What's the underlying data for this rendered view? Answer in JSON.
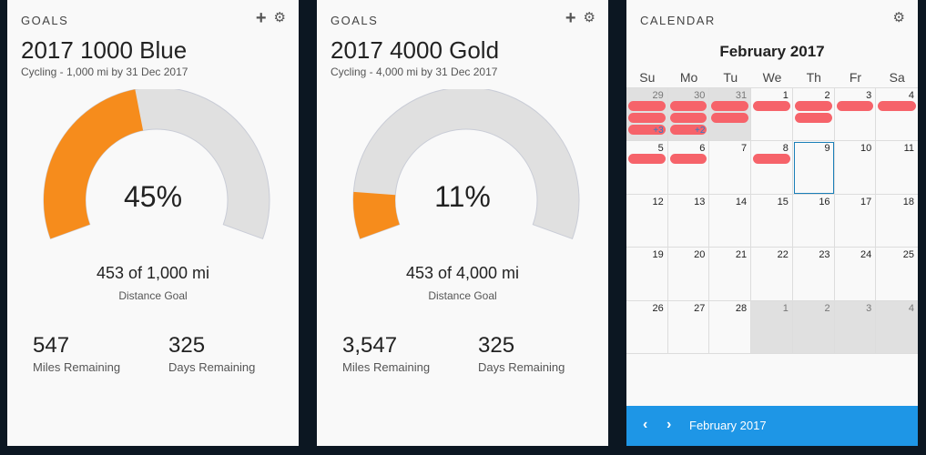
{
  "goals": [
    {
      "header": "GOALS",
      "title": "2017 1000 Blue",
      "subtitle": "Cycling - 1,000 mi by 31 Dec 2017",
      "progress_fraction": 0.45,
      "percent_text": "45%",
      "progress_text": "453 of 1,000 mi",
      "goal_type": "Distance Goal",
      "remaining_value": "547",
      "remaining_label": "Miles Remaining",
      "days_value": "325",
      "days_label": "Days Remaining"
    },
    {
      "header": "GOALS",
      "title": "2017 4000 Gold",
      "subtitle": "Cycling - 4,000 mi by 31 Dec 2017",
      "progress_fraction": 0.11,
      "percent_text": "11%",
      "progress_text": "453 of 4,000 mi",
      "goal_type": "Distance Goal",
      "remaining_value": "3,547",
      "remaining_label": "Miles Remaining",
      "days_value": "325",
      "days_label": "Days Remaining"
    }
  ],
  "icons": {
    "add": "plus-icon",
    "settings": "gear-icon",
    "prev": "chevron-left-icon",
    "next": "chevron-right-icon"
  },
  "colors": {
    "progress": "#f68c1c",
    "track": "#e0e0e0",
    "event": "#f6636a",
    "footer": "#1e96e6",
    "background": "#0c1722"
  },
  "calendar": {
    "header": "CALENDAR",
    "month_title": "February 2017",
    "weekdays": [
      "Su",
      "Mo",
      "Tu",
      "We",
      "Th",
      "Fr",
      "Sa"
    ],
    "days": [
      {
        "num": "29",
        "other": true,
        "events": 3,
        "more": "+3"
      },
      {
        "num": "30",
        "other": true,
        "events": 3,
        "more": "+2"
      },
      {
        "num": "31",
        "other": true,
        "events": 2
      },
      {
        "num": "1",
        "events": 1
      },
      {
        "num": "2",
        "events": 2
      },
      {
        "num": "3",
        "events": 1
      },
      {
        "num": "4",
        "events": 1
      },
      {
        "num": "5",
        "events": 1
      },
      {
        "num": "6",
        "events": 1
      },
      {
        "num": "7"
      },
      {
        "num": "8",
        "events": 1
      },
      {
        "num": "9",
        "selected": true
      },
      {
        "num": "10"
      },
      {
        "num": "11"
      },
      {
        "num": "12"
      },
      {
        "num": "13"
      },
      {
        "num": "14"
      },
      {
        "num": "15"
      },
      {
        "num": "16"
      },
      {
        "num": "17"
      },
      {
        "num": "18"
      },
      {
        "num": "19"
      },
      {
        "num": "20"
      },
      {
        "num": "21"
      },
      {
        "num": "22"
      },
      {
        "num": "23"
      },
      {
        "num": "24"
      },
      {
        "num": "25"
      },
      {
        "num": "26"
      },
      {
        "num": "27"
      },
      {
        "num": "28"
      },
      {
        "num": "1",
        "other": true
      },
      {
        "num": "2",
        "other": true
      },
      {
        "num": "3",
        "other": true
      },
      {
        "num": "4",
        "other": true
      }
    ],
    "footer_month": "February 2017",
    "prev_glyph": "‹",
    "next_glyph": "›"
  }
}
